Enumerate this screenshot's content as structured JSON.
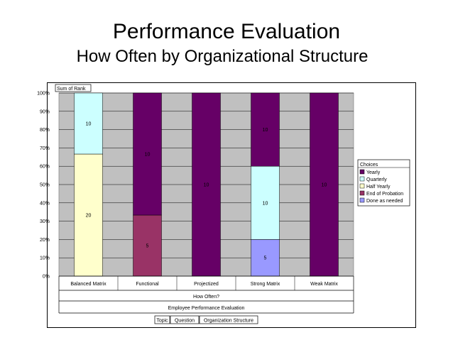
{
  "slide": {
    "title": "Performance Evaluation",
    "subtitle": "How Often by Organizational Structure"
  },
  "chart_data": {
    "type": "bar",
    "stacked": true,
    "normalized_percent": true,
    "field_label": "Sum of Rank",
    "categories": [
      "Balanced Matrix",
      "Functional",
      "Projectized",
      "Strong Matrix",
      "Weak Matrix"
    ],
    "series": [
      {
        "name": "Done as needed",
        "color": "#9999ff",
        "values": [
          0,
          0,
          0,
          5,
          0
        ],
        "data_labels": [
          "",
          "",
          "",
          "5",
          ""
        ]
      },
      {
        "name": "End of Probation",
        "color": "#993366",
        "values": [
          0,
          5,
          0,
          0,
          0
        ],
        "data_labels": [
          "",
          "5",
          "",
          "",
          ""
        ]
      },
      {
        "name": "Half Yearly",
        "color": "#ffffcc",
        "values": [
          20,
          0,
          0,
          0,
          0
        ],
        "data_labels": [
          "20",
          "",
          "",
          "",
          ""
        ]
      },
      {
        "name": "Quarterly",
        "color": "#ccffff",
        "values": [
          10,
          0,
          0,
          10,
          0
        ],
        "data_labels": [
          "10",
          "",
          "",
          "10",
          ""
        ]
      },
      {
        "name": "Yearly",
        "color": "#660066",
        "values": [
          0,
          10,
          10,
          10,
          10
        ],
        "data_labels": [
          "",
          "10",
          "10",
          "10",
          "10"
        ]
      }
    ],
    "legend": {
      "title": "Choices",
      "entries": [
        "Yearly",
        "Quarterly",
        "Half Yearly",
        "End of Probation",
        "Done as needed"
      ],
      "placement": "right"
    },
    "y_ticks": [
      "0%",
      "10%",
      "20%",
      "30%",
      "40%",
      "50%",
      "60%",
      "70%",
      "80%",
      "90%",
      "100%"
    ],
    "ylim": [
      0,
      100
    ],
    "x_field_label": "How Often?",
    "footer_label": "Employee Performance Evaluation",
    "page_fields": [
      "Topic",
      "Question",
      "Organization Structure"
    ],
    "grid": true,
    "plot_background": "#c0c0c0"
  }
}
